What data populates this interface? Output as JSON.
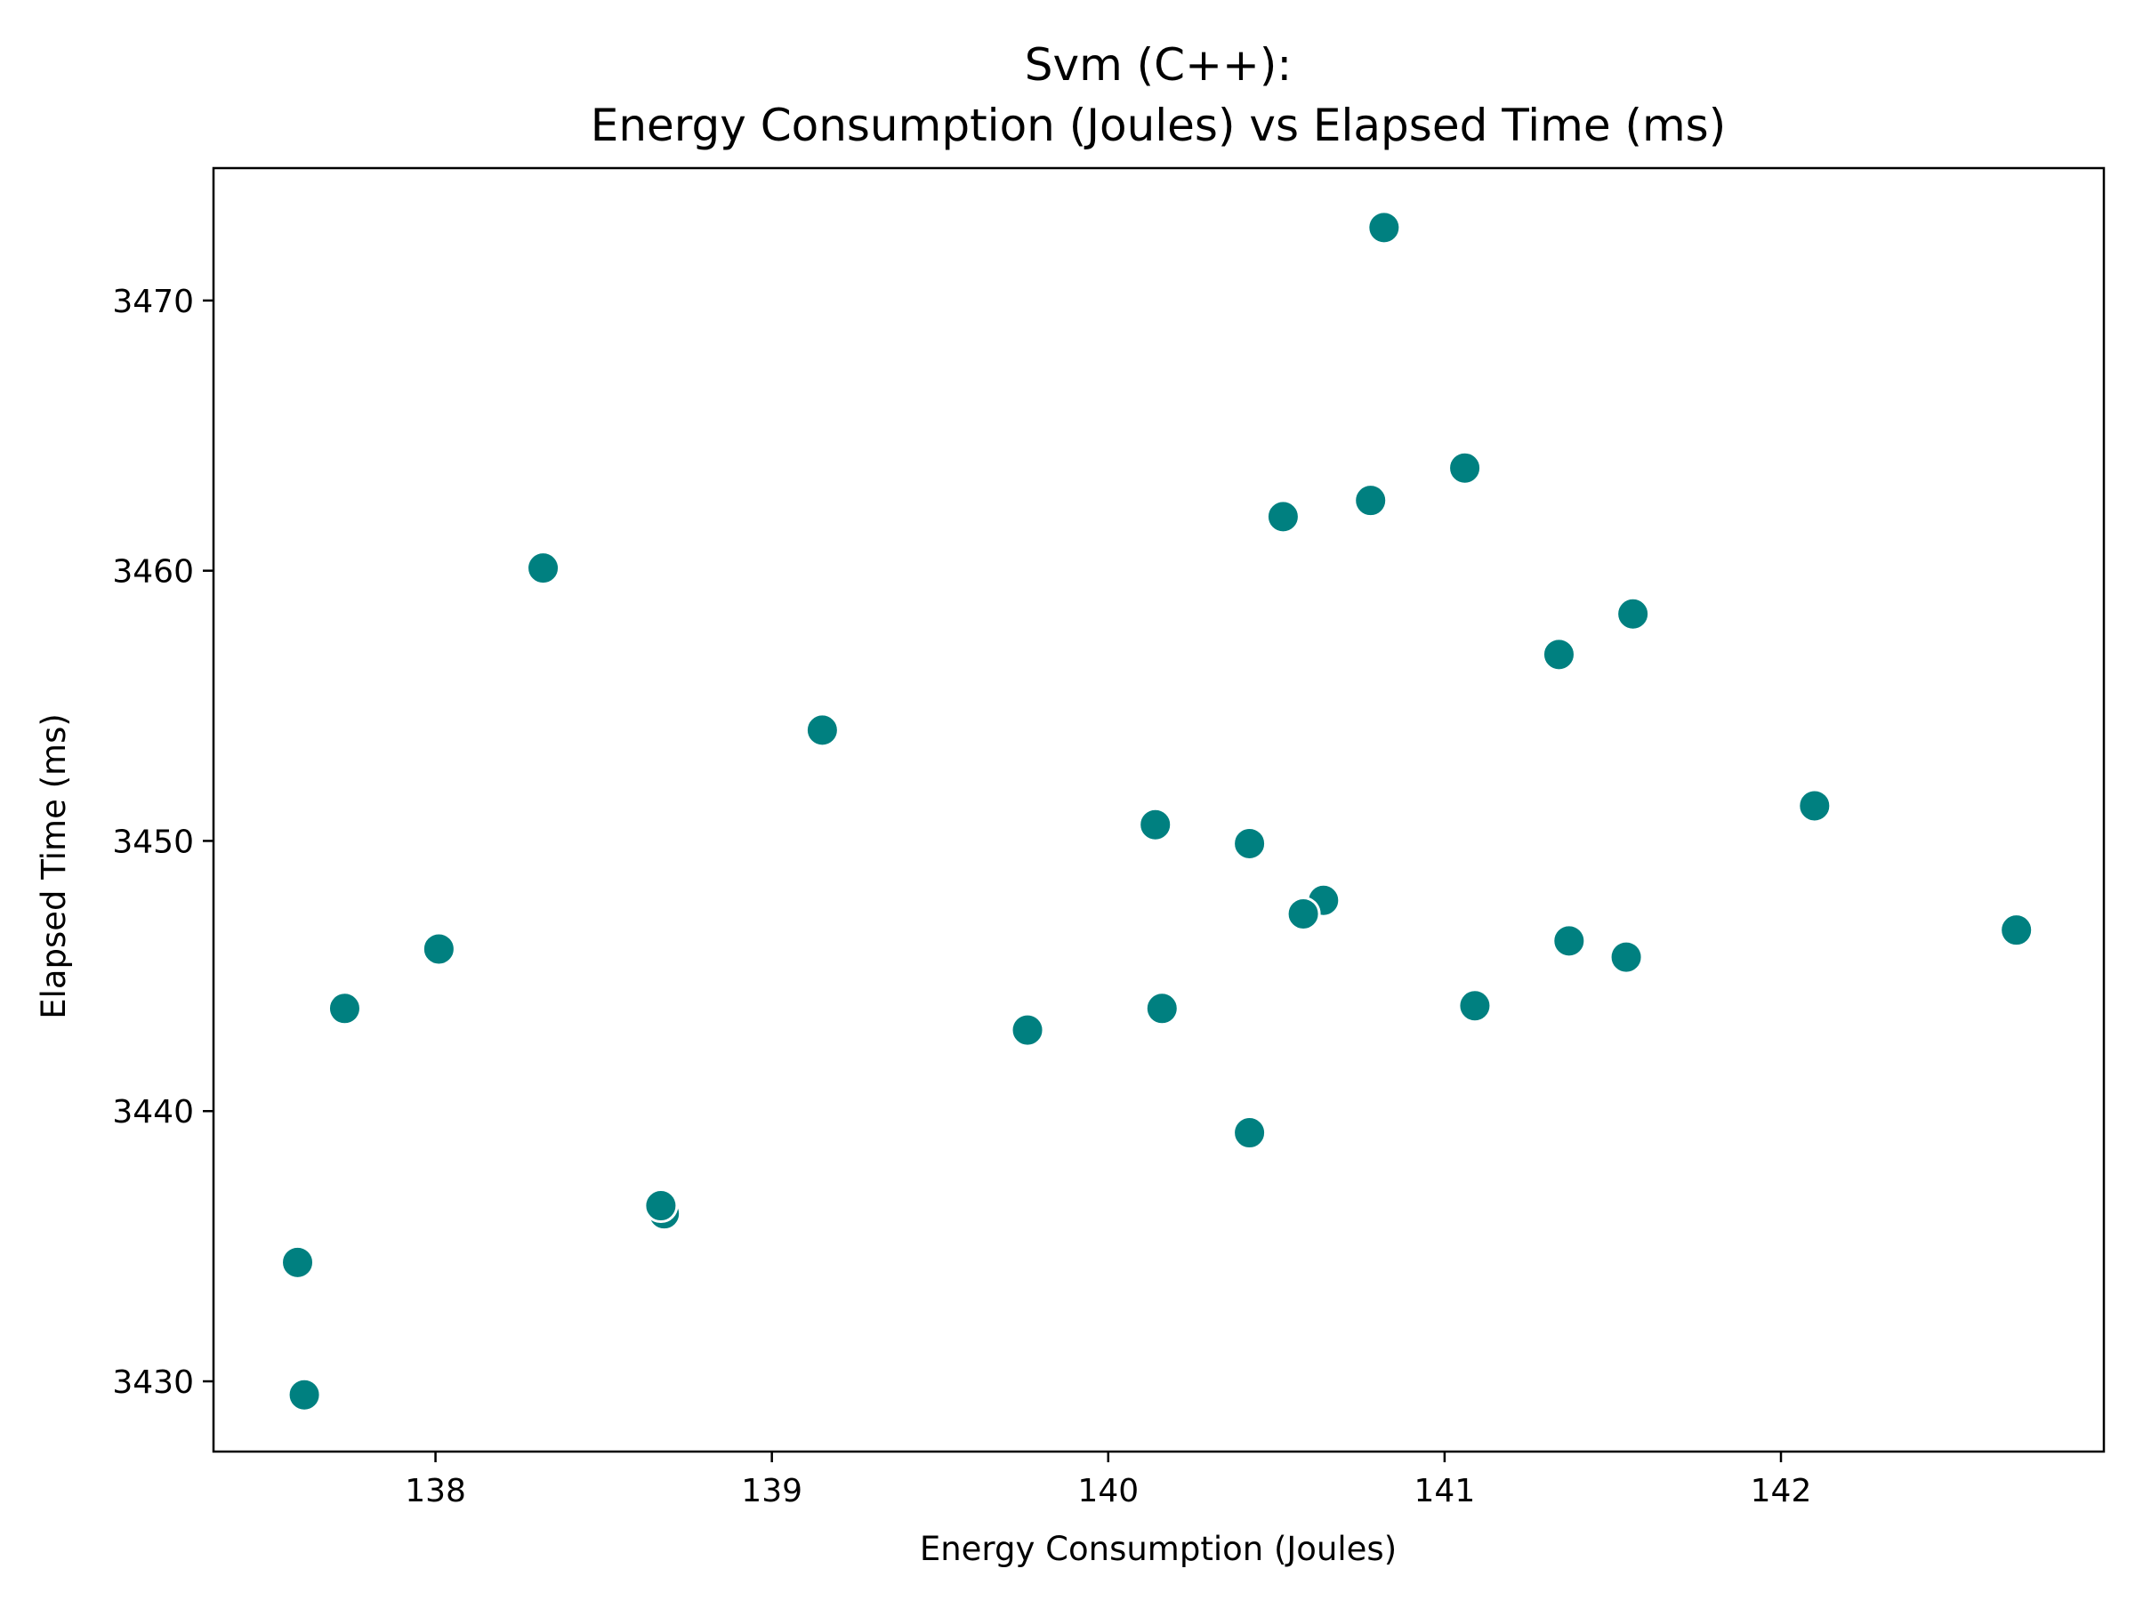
{
  "chart_data": {
    "type": "scatter",
    "title_lines": [
      "Svm (C++):",
      "Energy Consumption (Joules) vs Elapsed Time (ms)"
    ],
    "xlabel": "Energy Consumption (Joules)",
    "ylabel": "Elapsed Time (ms)",
    "xlim": [
      137.34,
      142.96
    ],
    "ylim": [
      3427.4,
      3474.9
    ],
    "xticks": [
      138,
      139,
      140,
      141,
      142
    ],
    "yticks": [
      3430,
      3440,
      3450,
      3460,
      3470
    ],
    "grid": false,
    "legend": "none",
    "color": "#008080",
    "points": [
      {
        "x": 140.82,
        "y": 3472.7
      },
      {
        "x": 141.06,
        "y": 3463.8
      },
      {
        "x": 140.78,
        "y": 3462.6
      },
      {
        "x": 140.52,
        "y": 3462.0
      },
      {
        "x": 138.32,
        "y": 3460.1
      },
      {
        "x": 141.56,
        "y": 3458.4
      },
      {
        "x": 141.34,
        "y": 3456.9
      },
      {
        "x": 139.15,
        "y": 3454.1
      },
      {
        "x": 142.1,
        "y": 3451.3
      },
      {
        "x": 140.14,
        "y": 3450.6
      },
      {
        "x": 140.42,
        "y": 3449.9
      },
      {
        "x": 140.64,
        "y": 3447.8
      },
      {
        "x": 140.58,
        "y": 3447.3
      },
      {
        "x": 142.7,
        "y": 3446.7
      },
      {
        "x": 141.37,
        "y": 3446.3
      },
      {
        "x": 138.01,
        "y": 3446.0
      },
      {
        "x": 141.54,
        "y": 3445.7
      },
      {
        "x": 141.09,
        "y": 3443.9
      },
      {
        "x": 137.73,
        "y": 3443.8
      },
      {
        "x": 140.16,
        "y": 3443.8
      },
      {
        "x": 139.76,
        "y": 3443.0
      },
      {
        "x": 140.42,
        "y": 3439.2
      },
      {
        "x": 138.68,
        "y": 3436.2
      },
      {
        "x": 138.67,
        "y": 3436.5
      },
      {
        "x": 137.59,
        "y": 3434.4
      },
      {
        "x": 137.61,
        "y": 3429.5
      }
    ]
  }
}
